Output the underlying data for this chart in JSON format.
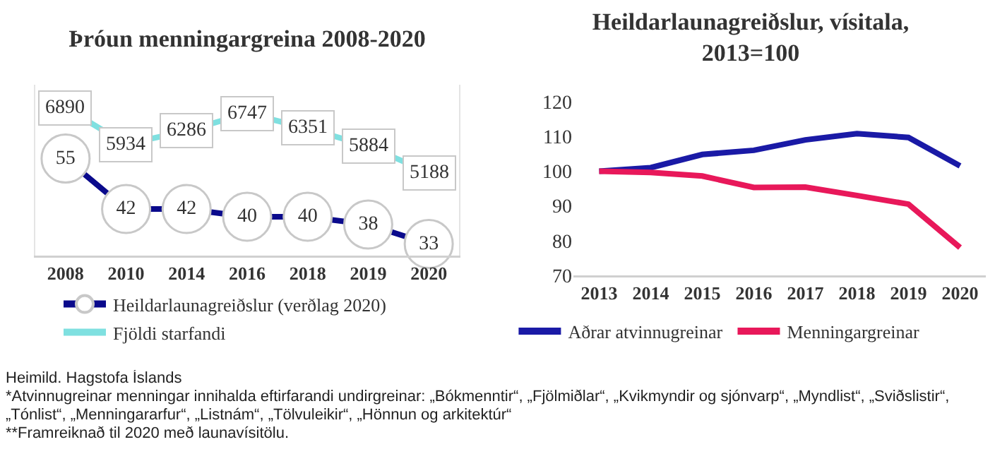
{
  "chart_data": [
    {
      "type": "line",
      "title": "Þróun menningargreina 2008-2020",
      "categories": [
        "2008",
        "2010",
        "2014",
        "2016",
        "2018",
        "2019",
        "2020"
      ],
      "series": [
        {
          "name": "Heildarlaunagreiðslur (verðlag 2020)",
          "color": "#0a0a8c",
          "marker": "circle",
          "values": [
            55,
            42,
            42,
            40,
            40,
            38,
            33
          ]
        },
        {
          "name": "Fjöldi starfandi",
          "color": "#7fe0e0",
          "axis": "y2",
          "marker": "square",
          "values": [
            6890,
            5934,
            6286,
            6747,
            6351,
            5884,
            5188
          ]
        }
      ],
      "ylim": [
        30,
        74
      ],
      "y2lim": [
        3000,
        7500
      ],
      "tick_labels": "x",
      "data_labels": true,
      "grid": false,
      "legend": "bottom",
      "annotations": [
        "Heimild. Hagstofa Íslands",
        "*Atvinnugreinar menningar innihalda eftirfarandi undirgreinar: „Bókmenntir“, „Fjölmiðlar“, „Kvikmyndir og sjónvarp“, „Myndlist“, „Sviðslistir“, „Tónlist“, „Menningararfur“, „Listnám“, „Tölvuleikir“, „Hönnun og arkitektúr“",
        "**Framreiknað til 2020 með launavísitölu."
      ]
    },
    {
      "type": "line",
      "title": "Heildarlaunagreiðslur, vísitala,\n2013=100",
      "categories": [
        "2013",
        "2014",
        "2015",
        "2016",
        "2017",
        "2018",
        "2019",
        "2020"
      ],
      "series": [
        {
          "name": "Aðrar atvinnugreinar",
          "color": "#1a1aa6",
          "values": [
            100,
            101,
            104.8,
            106,
            109,
            110.8,
            109.7,
            101.5
          ]
        },
        {
          "name": "Menningargreinar",
          "color": "#e8185a",
          "values": [
            100,
            99.6,
            98.6,
            95.3,
            95.4,
            93,
            90.5,
            78
          ]
        }
      ],
      "ylim": [
        70,
        120
      ],
      "yticks": [
        70,
        80,
        90,
        100,
        110,
        120
      ],
      "grid": false,
      "legend": "bottom"
    }
  ]
}
